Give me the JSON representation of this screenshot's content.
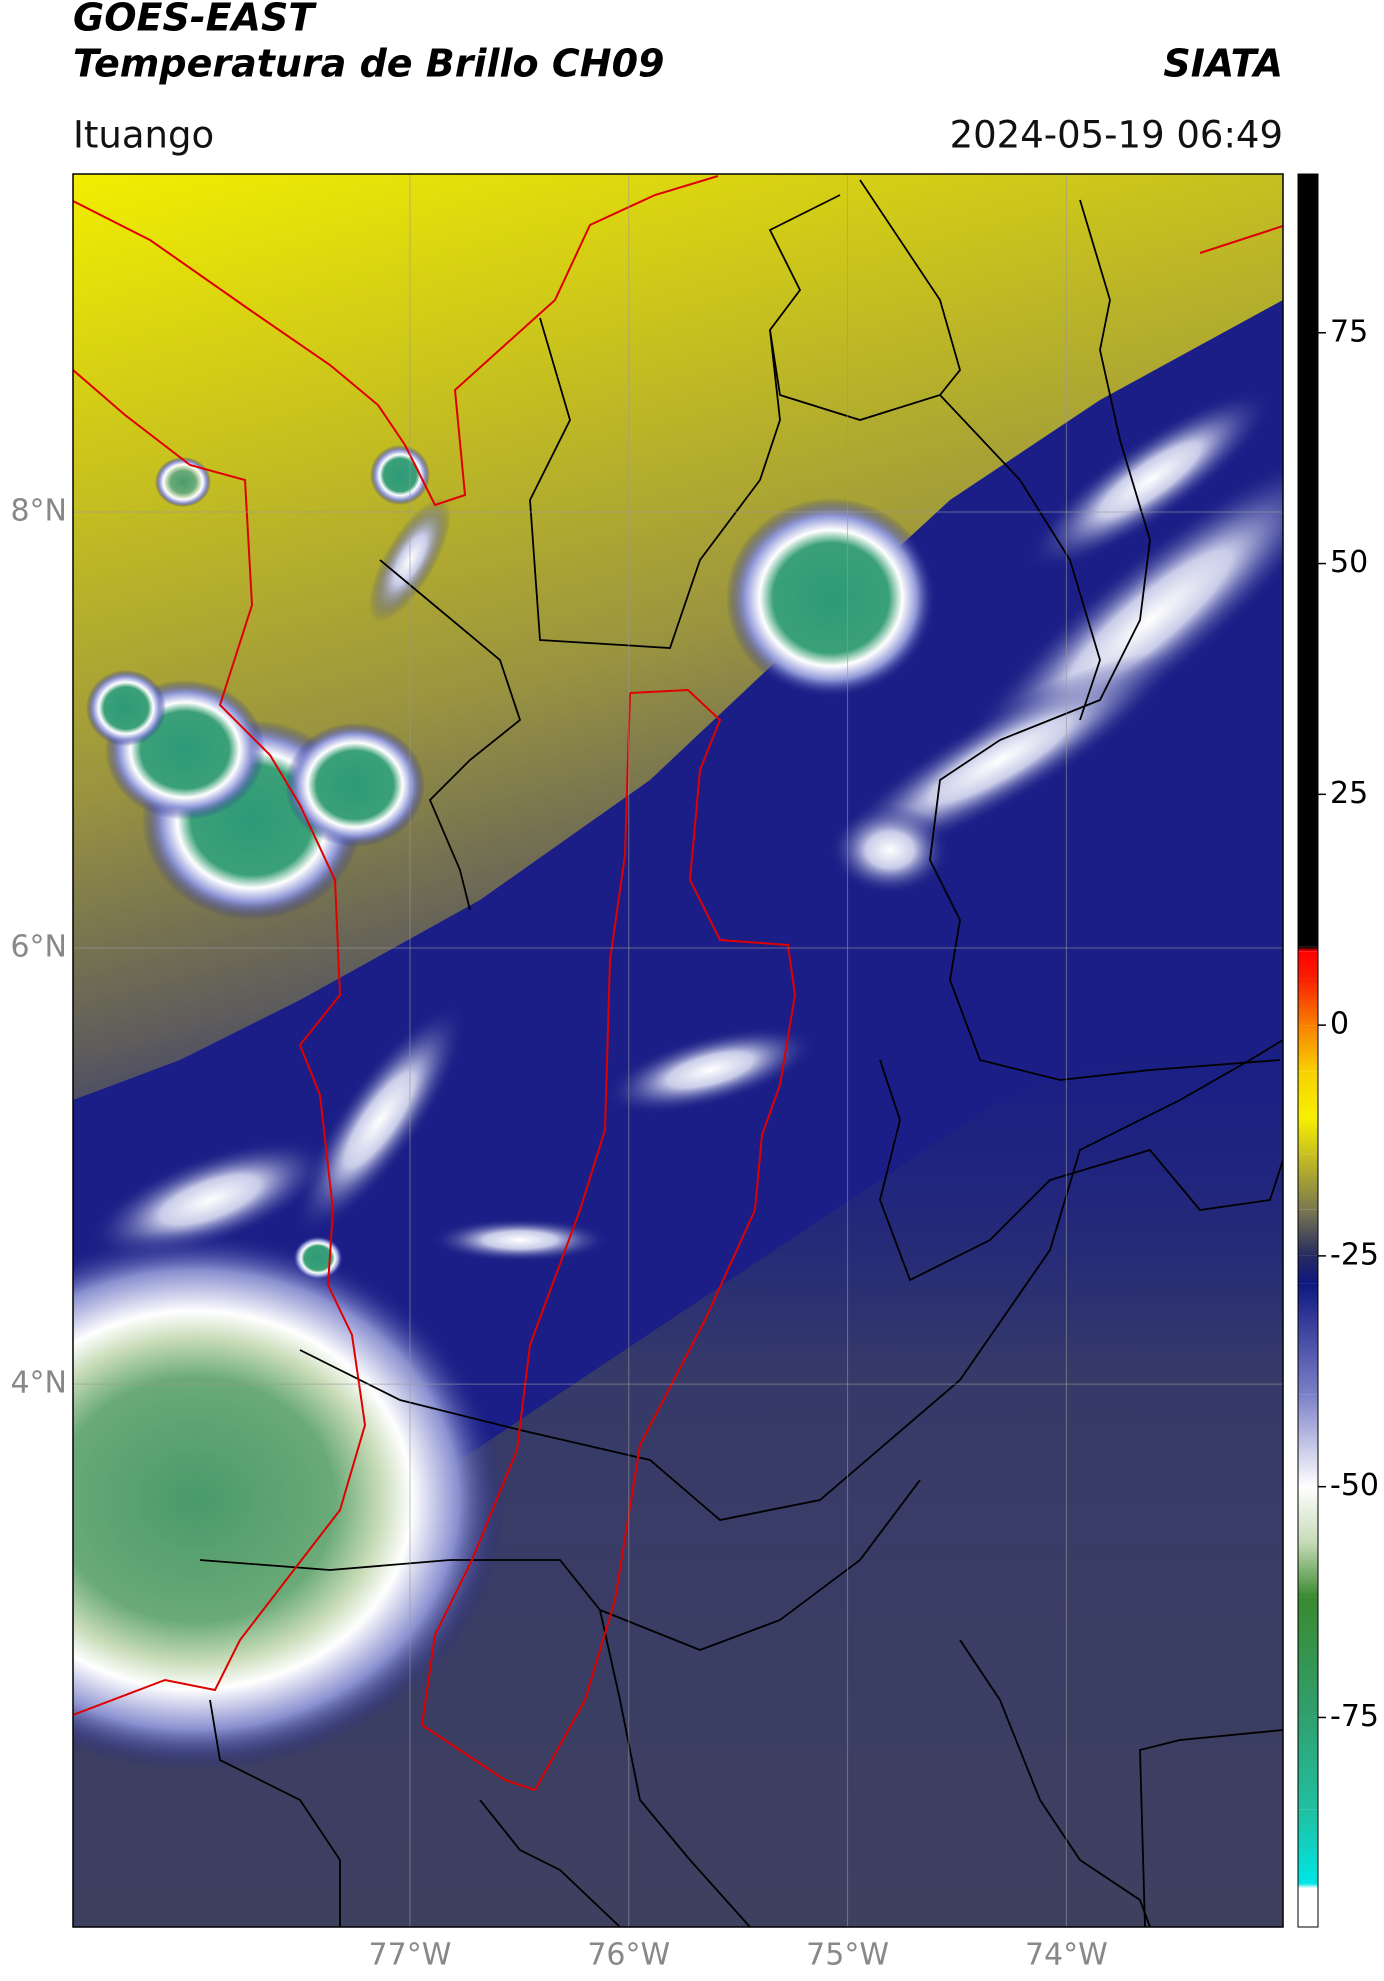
{
  "title": "GOES-EAST",
  "subtitle": "Temperatura de Brillo CH09",
  "source": "SIATA",
  "location": "Ituango",
  "datetime": "2024-05-19 06:49",
  "map": {
    "lonlim": [
      -78.54,
      -73.01
    ],
    "latlim": [
      1.51,
      9.55
    ],
    "lonticks": [
      {
        "value": -77,
        "label": "77°W"
      },
      {
        "value": -76,
        "label": "76°W"
      },
      {
        "value": -75,
        "label": "75°W"
      },
      {
        "value": -74,
        "label": "74°W"
      }
    ],
    "latticks": [
      {
        "value": 8,
        "label": "8°N"
      },
      {
        "value": 6,
        "label": "6°N"
      },
      {
        "value": 4,
        "label": "4°N"
      }
    ],
    "grid": true
  },
  "colorbar": {
    "lim": [
      -97.7,
      92.2
    ],
    "ticks": [
      -75,
      -50,
      -25,
      0,
      25,
      50,
      75
    ],
    "stops": [
      {
        "value": -97.7,
        "color": "#ffffff"
      },
      {
        "value": -93.5,
        "color": "#ffffff"
      },
      {
        "value": -93,
        "color": "#00e5e5"
      },
      {
        "value": -85,
        "color": "#20c0a0"
      },
      {
        "value": -75,
        "color": "#30a070"
      },
      {
        "value": -62,
        "color": "#3a8a30"
      },
      {
        "value": -56,
        "color": "#c8dcb8"
      },
      {
        "value": -50,
        "color": "#ffffff"
      },
      {
        "value": -40,
        "color": "#7c80c8"
      },
      {
        "value": -28,
        "color": "#101880"
      },
      {
        "value": -25,
        "color": "#262a60"
      },
      {
        "value": -20,
        "color": "#7a7850"
      },
      {
        "value": -14,
        "color": "#c8c020"
      },
      {
        "value": -10,
        "color": "#f8f000"
      },
      {
        "value": -5,
        "color": "#f8d000"
      },
      {
        "value": 0,
        "color": "#f88000"
      },
      {
        "value": 5,
        "color": "#f82000"
      },
      {
        "value": 8,
        "color": "#ff0000"
      },
      {
        "value": 8.5,
        "color": "#000000"
      },
      {
        "value": 92.2,
        "color": "#000000"
      }
    ]
  }
}
